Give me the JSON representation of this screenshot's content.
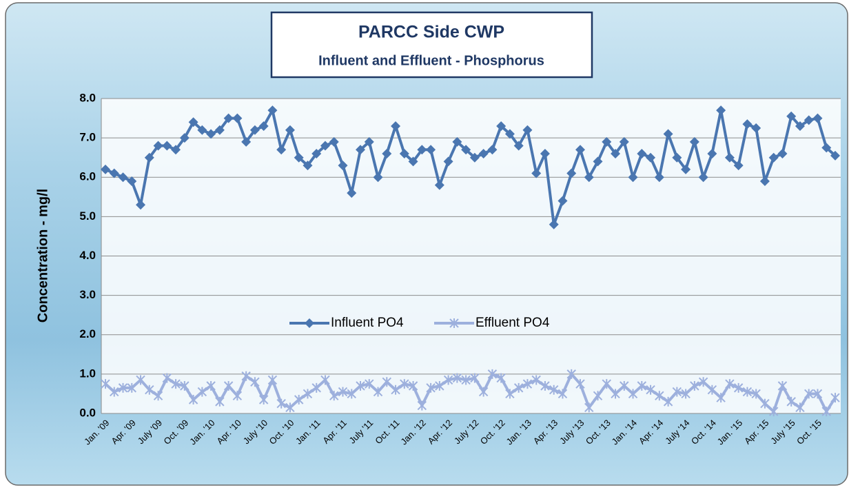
{
  "chart_data": {
    "type": "line",
    "title": "PARCC Side CWP",
    "subtitle": "Influent and Effluent - Phosphorus",
    "y_label": "Concentration - mg/l",
    "categories": [
      "Jan. '09",
      null,
      null,
      "Apr. '09",
      null,
      null,
      "July '09",
      null,
      null,
      "Oct. '09",
      null,
      null,
      "Jan. '10",
      null,
      null,
      "Apr. '10",
      null,
      null,
      "July '10",
      null,
      null,
      "Oct. '10",
      null,
      null,
      "Jan. '11",
      null,
      null,
      "Apr. '11",
      null,
      null,
      "July '11",
      null,
      null,
      "Oct. '11",
      null,
      null,
      "Jan. '12",
      null,
      null,
      "Apr. '12",
      null,
      null,
      "July '12",
      null,
      null,
      "Oct. '12",
      null,
      null,
      "Jan. '13",
      null,
      null,
      "Apr. '13",
      null,
      null,
      "July '13",
      null,
      null,
      "Oct. '13",
      null,
      null,
      "Jan. '14",
      null,
      null,
      "Apr. '14",
      null,
      null,
      "July '14",
      null,
      null,
      "Oct. '14",
      null,
      null,
      "Jan. '15",
      null,
      null,
      "Apr. '15",
      null,
      null,
      "July '15",
      null,
      null,
      "Oct. '15",
      null,
      null
    ],
    "series": [
      {
        "name": "Influent PO4",
        "color": "#4a76b0",
        "marker": "diamond",
        "values": [
          6.2,
          6.1,
          6.0,
          5.9,
          5.3,
          6.5,
          6.8,
          6.8,
          6.7,
          7.0,
          7.4,
          7.2,
          7.1,
          7.2,
          7.5,
          7.5,
          6.9,
          7.2,
          7.3,
          7.7,
          6.7,
          7.2,
          6.5,
          6.3,
          6.6,
          6.8,
          6.9,
          6.3,
          5.6,
          6.7,
          6.9,
          6.0,
          6.6,
          7.3,
          6.6,
          6.4,
          6.7,
          6.7,
          5.8,
          6.4,
          6.9,
          6.7,
          6.5,
          6.6,
          6.7,
          7.3,
          7.1,
          6.8,
          7.2,
          6.1,
          6.6,
          4.8,
          5.4,
          6.1,
          6.7,
          6.0,
          6.4,
          6.9,
          6.6,
          6.9,
          6.0,
          6.6,
          6.5,
          6.0,
          7.1,
          6.5,
          6.2,
          6.9,
          6.0,
          6.6,
          7.7,
          6.5,
          6.3,
          7.35,
          7.25,
          5.9,
          6.5,
          6.6,
          7.55,
          7.3,
          7.45,
          7.5,
          6.75,
          6.55
        ]
      },
      {
        "name": "Effluent PO4",
        "color": "#9db0dd",
        "marker": "star",
        "values": [
          0.75,
          0.55,
          0.65,
          0.65,
          0.85,
          0.6,
          0.45,
          0.9,
          0.75,
          0.7,
          0.35,
          0.55,
          0.7,
          0.3,
          0.7,
          0.45,
          0.95,
          0.8,
          0.35,
          0.85,
          0.25,
          0.15,
          0.35,
          0.5,
          0.65,
          0.85,
          0.45,
          0.55,
          0.5,
          0.7,
          0.75,
          0.55,
          0.8,
          0.6,
          0.75,
          0.7,
          0.2,
          0.65,
          0.7,
          0.85,
          0.9,
          0.85,
          0.9,
          0.55,
          1.0,
          0.9,
          0.5,
          0.65,
          0.75,
          0.85,
          0.7,
          0.6,
          0.5,
          1.0,
          0.75,
          0.15,
          0.45,
          0.75,
          0.5,
          0.7,
          0.5,
          0.7,
          0.6,
          0.45,
          0.3,
          0.55,
          0.5,
          0.7,
          0.8,
          0.6,
          0.4,
          0.75,
          0.65,
          0.55,
          0.5,
          0.25,
          0.05,
          0.7,
          0.3,
          0.15,
          0.5,
          0.5,
          0.05,
          0.4
        ]
      }
    ],
    "ylim": [
      0,
      8
    ],
    "yticks": [
      {
        "value": 0,
        "label": "0.0"
      },
      {
        "value": 1,
        "label": "1.0"
      },
      {
        "value": 2,
        "label": "2.0"
      },
      {
        "value": 3,
        "label": "3.0"
      },
      {
        "value": 4,
        "label": "4.0"
      },
      {
        "value": 5,
        "label": "5.0"
      },
      {
        "value": 6,
        "label": "6.0"
      },
      {
        "value": 7,
        "label": "7.0"
      },
      {
        "value": 8,
        "label": "8.0"
      }
    ],
    "grid": true,
    "legend": "center"
  }
}
